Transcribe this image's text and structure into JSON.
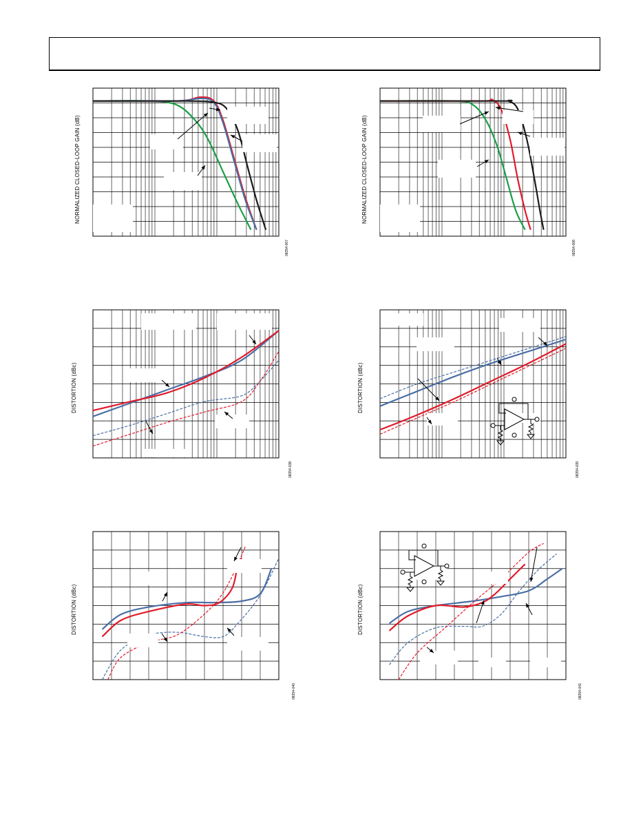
{
  "chart_data": [
    {
      "type": "line",
      "ylabel": "NORMALIZED CLOSED-LOOP GAIN (dB)",
      "figure_code": "08354-007",
      "xscale": "log",
      "grid": true,
      "series": [
        {
          "color": "#1a9e47",
          "x": [
            0.0,
            0.3,
            0.45,
            0.55,
            0.62,
            0.7,
            0.78,
            0.85
          ],
          "y": [
            0.0,
            0.0,
            -0.3,
            -1.5,
            -3,
            -5.5,
            -8,
            -10
          ]
        },
        {
          "color": "#e01b2a",
          "x": [
            0.0,
            0.45,
            0.58,
            0.65,
            0.7,
            0.76,
            0.82,
            0.88
          ],
          "y": [
            0.0,
            0.0,
            0.3,
            0.0,
            -1.5,
            -4.5,
            -7.5,
            -10
          ]
        },
        {
          "color": "#4a6fa5",
          "x": [
            0.0,
            0.45,
            0.58,
            0.65,
            0.7,
            0.76,
            0.82,
            0.88
          ],
          "y": [
            0.0,
            0.0,
            0.2,
            -0.1,
            -1.7,
            -4.7,
            -7.7,
            -10
          ]
        },
        {
          "color": "#1a1a1a",
          "x": [
            0.0,
            0.5,
            0.65,
            0.72,
            0.78,
            0.83,
            0.88,
            0.93
          ],
          "y": [
            0.0,
            0.0,
            -0.1,
            -0.6,
            -2.3,
            -5,
            -7.7,
            -10
          ]
        }
      ]
    },
    {
      "type": "line",
      "ylabel": "NORMALIZED CLOSED-LOOP GAIN (dB)",
      "figure_code": "08354-008",
      "xscale": "log",
      "grid": true,
      "series": [
        {
          "color": "#1a9e47",
          "x": [
            0.0,
            0.4,
            0.5,
            0.57,
            0.63,
            0.68,
            0.73,
            0.78
          ],
          "y": [
            0.0,
            0.0,
            -0.3,
            -1.5,
            -3.5,
            -6,
            -8.5,
            -10
          ]
        },
        {
          "color": "#e01b2a",
          "x": [
            0.0,
            0.55,
            0.6,
            0.65,
            0.7,
            0.74,
            0.78,
            0.81
          ],
          "y": [
            0.0,
            0.0,
            0.1,
            -0.6,
            -3,
            -6,
            -8.5,
            -10
          ]
        },
        {
          "color": "#1a1a1a",
          "x": [
            0.0,
            0.65,
            0.69,
            0.74,
            0.79,
            0.83,
            0.86,
            0.88
          ],
          "y": [
            0.0,
            0.0,
            0.0,
            -0.6,
            -3,
            -6,
            -8.5,
            -10
          ]
        }
      ]
    },
    {
      "type": "line",
      "ylabel": "DISTORTION (dBc)",
      "figure_code": "08354-038",
      "xscale": "log",
      "grid": true,
      "series": [
        {
          "color": "#4a6fa5",
          "dashed": false,
          "x": [
            0.0,
            0.2,
            0.4,
            0.6,
            0.8,
            1.0
          ],
          "y": [
            0.28,
            0.37,
            0.46,
            0.55,
            0.66,
            0.86
          ]
        },
        {
          "color": "#e01b2a",
          "dashed": false,
          "x": [
            0.0,
            0.2,
            0.4,
            0.6,
            0.8,
            1.0
          ],
          "y": [
            0.32,
            0.38,
            0.44,
            0.54,
            0.68,
            0.86
          ]
        },
        {
          "color": "#4a6fa5",
          "dashed": true,
          "x": [
            0.0,
            0.2,
            0.4,
            0.6,
            0.8,
            0.9,
            1.0
          ],
          "y": [
            0.15,
            0.22,
            0.3,
            0.38,
            0.42,
            0.52,
            0.66
          ]
        },
        {
          "color": "#e01b2a",
          "dashed": true,
          "x": [
            0.0,
            0.2,
            0.4,
            0.6,
            0.8,
            0.9,
            1.0
          ],
          "y": [
            0.08,
            0.16,
            0.24,
            0.31,
            0.38,
            0.52,
            0.72
          ]
        }
      ]
    },
    {
      "type": "line",
      "ylabel": "DISTORTION (dBc)",
      "figure_code": "08354-039",
      "xscale": "log",
      "grid": true,
      "series": [
        {
          "color": "#4a6fa5",
          "dashed": false,
          "x": [
            0.0,
            0.2,
            0.4,
            0.6,
            0.8,
            1.0
          ],
          "y": [
            0.35,
            0.45,
            0.55,
            0.64,
            0.72,
            0.8
          ]
        },
        {
          "color": "#e01b2a",
          "dashed": false,
          "x": [
            0.0,
            0.2,
            0.4,
            0.6,
            0.8,
            1.0
          ],
          "y": [
            0.19,
            0.29,
            0.4,
            0.52,
            0.64,
            0.77
          ]
        },
        {
          "color": "#4a6fa5",
          "dashed": true,
          "x": [
            0.0,
            0.2,
            0.4,
            0.6,
            0.8,
            1.0
          ],
          "y": [
            0.4,
            0.5,
            0.58,
            0.66,
            0.74,
            0.82
          ]
        },
        {
          "color": "#e01b2a",
          "dashed": true,
          "x": [
            0.0,
            0.2,
            0.4,
            0.6,
            0.8,
            1.0
          ],
          "y": [
            0.16,
            0.27,
            0.38,
            0.5,
            0.62,
            0.74
          ]
        }
      ]
    },
    {
      "type": "line",
      "ylabel": "DISTORTION (dBc)",
      "figure_code": "08354-040",
      "grid": true,
      "series": [
        {
          "color": "#4a6fa5",
          "dashed": false,
          "x": [
            0.05,
            0.15,
            0.3,
            0.5,
            0.65,
            0.8,
            0.9,
            0.96
          ],
          "y": [
            0.34,
            0.44,
            0.49,
            0.52,
            0.52,
            0.53,
            0.58,
            0.75
          ]
        },
        {
          "color": "#e01b2a",
          "dashed": false,
          "x": [
            0.05,
            0.15,
            0.3,
            0.5,
            0.6,
            0.68,
            0.75,
            0.78,
            0.8
          ],
          "y": [
            0.29,
            0.4,
            0.46,
            0.51,
            0.5,
            0.52,
            0.62,
            0.78,
            0.82
          ]
        },
        {
          "color": "#4a6fa5",
          "dashed": true,
          "x": [
            0.05,
            0.15,
            0.3,
            0.45,
            0.6,
            0.7,
            0.78,
            0.9,
            1.0
          ],
          "y": [
            0.0,
            0.2,
            0.3,
            0.32,
            0.29,
            0.29,
            0.38,
            0.57,
            0.82
          ]
        },
        {
          "color": "#e01b2a",
          "dashed": true,
          "x": [
            0.08,
            0.15,
            0.3,
            0.45,
            0.58,
            0.68,
            0.75,
            0.82
          ],
          "y": [
            0.0,
            0.15,
            0.25,
            0.3,
            0.42,
            0.55,
            0.7,
            0.9
          ]
        }
      ]
    },
    {
      "type": "line",
      "ylabel": "DISTORTION (dBc)",
      "figure_code": "08354-041",
      "grid": true,
      "series": [
        {
          "color": "#4a6fa5",
          "dashed": false,
          "x": [
            0.05,
            0.15,
            0.3,
            0.5,
            0.65,
            0.8,
            0.9,
            0.98
          ],
          "y": [
            0.38,
            0.46,
            0.5,
            0.53,
            0.56,
            0.6,
            0.68,
            0.75
          ]
        },
        {
          "color": "#e01b2a",
          "dashed": false,
          "x": [
            0.05,
            0.15,
            0.3,
            0.45,
            0.55,
            0.62,
            0.7,
            0.78
          ],
          "y": [
            0.33,
            0.43,
            0.5,
            0.49,
            0.52,
            0.58,
            0.68,
            0.78
          ]
        },
        {
          "color": "#4a6fa5",
          "dashed": true,
          "x": [
            0.05,
            0.15,
            0.3,
            0.45,
            0.55,
            0.65,
            0.75,
            0.85,
            0.95
          ],
          "y": [
            0.1,
            0.25,
            0.35,
            0.36,
            0.36,
            0.44,
            0.6,
            0.74,
            0.85
          ]
        },
        {
          "color": "#e01b2a",
          "dashed": true,
          "x": [
            0.1,
            0.2,
            0.35,
            0.5,
            0.65,
            0.8,
            0.88
          ],
          "y": [
            0.0,
            0.18,
            0.35,
            0.52,
            0.68,
            0.86,
            0.92
          ]
        }
      ]
    }
  ]
}
